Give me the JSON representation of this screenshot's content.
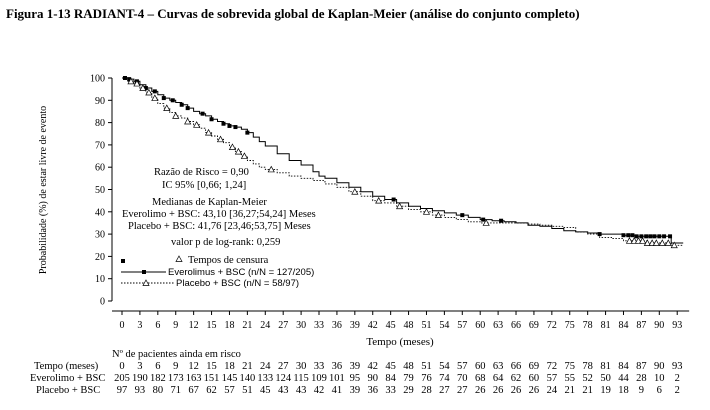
{
  "figure_title": "Figura 1-13 RADIANT-4 – Curvas de sobrevida global de Kaplan-Meier (análise do conjunto completo)",
  "annotations": {
    "hazard_ratio": "Razão de Risco = 0,90",
    "ci": "IC 95% [0,66; 1,24]",
    "medians_title": "Medianas de Kaplan-Meier",
    "median_everolimus": "Everolimo + BSC: 43,10 [36,27;54,24] Meses",
    "median_placebo": "Placebo + BSC: 41,76 [23,46;53,75] Meses",
    "logrank": "valor p de log-rank: 0,259"
  },
  "legend": {
    "title": "Tempos de censura",
    "entries": [
      {
        "label": "Everolimus + BSC (n/N = 127/205)"
      },
      {
        "label": "Placebo + BSC (n/N = 58/97)"
      }
    ]
  },
  "risk_table": {
    "heading": "Nº de pacientes ainda em risco",
    "time_label": "Tempo (meses)",
    "times": [
      "0",
      "3",
      "6",
      "9",
      "12",
      "15",
      "18",
      "21",
      "24",
      "27",
      "30",
      "33",
      "36",
      "39",
      "42",
      "45",
      "48",
      "51",
      "54",
      "57",
      "60",
      "63",
      "66",
      "69",
      "72",
      "75",
      "78",
      "81",
      "84",
      "87",
      "90",
      "93"
    ],
    "rows": [
      {
        "label": "Everolimo + BSC",
        "values": [
          "205",
          "190",
          "182",
          "173",
          "163",
          "151",
          "145",
          "140",
          "133",
          "124",
          "115",
          "109",
          "101",
          "95",
          "90",
          "84",
          "79",
          "76",
          "74",
          "70",
          "68",
          "64",
          "62",
          "60",
          "57",
          "55",
          "52",
          "50",
          "44",
          "28",
          "10",
          "2"
        ]
      },
      {
        "label": "Placebo + BSC",
        "values": [
          "97",
          "93",
          "80",
          "71",
          "67",
          "62",
          "57",
          "51",
          "45",
          "43",
          "43",
          "42",
          "41",
          "39",
          "36",
          "33",
          "29",
          "28",
          "27",
          "27",
          "26",
          "26",
          "26",
          "26",
          "24",
          "21",
          "21",
          "19",
          "18",
          "9",
          "6",
          "2"
        ]
      }
    ]
  },
  "chart_data": {
    "type": "line",
    "title": "Figura 1-13 RADIANT-4 – Curvas de sobrevida global de Kaplan-Meier (análise do conjunto completo)",
    "xlabel": "Tempo (meses)",
    "ylabel": "Probabilidade (%) de estar livre de evento",
    "xlim": [
      0,
      95
    ],
    "ylim": [
      0,
      100
    ],
    "xticks": [
      0,
      3,
      6,
      9,
      12,
      15,
      18,
      21,
      24,
      27,
      30,
      33,
      36,
      39,
      42,
      45,
      48,
      51,
      54,
      57,
      60,
      63,
      66,
      69,
      72,
      75,
      78,
      81,
      84,
      87,
      90,
      93
    ],
    "yticks": [
      0,
      10,
      20,
      30,
      40,
      50,
      60,
      70,
      80,
      90,
      100
    ],
    "grid": false,
    "series": [
      {
        "name": "Everolimus + BSC (n/N = 127/205)",
        "style": "solid",
        "marker": "square",
        "x": [
          0,
          1,
          2,
          3,
          4,
          5,
          6,
          7,
          8,
          9,
          10,
          11,
          12,
          13,
          14,
          15,
          16,
          17,
          18,
          19,
          20,
          21,
          22,
          23,
          24,
          26,
          28,
          30,
          32,
          33,
          34,
          36,
          38,
          40,
          42,
          44,
          46,
          48,
          50,
          52,
          54,
          56,
          58,
          60,
          62,
          64,
          66,
          68,
          70,
          72,
          74,
          76,
          78,
          80,
          82,
          84,
          86,
          88,
          90,
          92,
          94
        ],
        "y": [
          100,
          99.5,
          98.5,
          97,
          95.5,
          94,
          92.5,
          91,
          90,
          89,
          88,
          86.5,
          85,
          84,
          83,
          81.5,
          80.5,
          79.5,
          78.5,
          78,
          77,
          75.5,
          73.5,
          71.5,
          69.5,
          66,
          63,
          61,
          58,
          56,
          55,
          53,
          51,
          49,
          47,
          45.5,
          44,
          42.5,
          41.5,
          40.5,
          39.5,
          38.5,
          37.5,
          36.5,
          36,
          35.5,
          35,
          34,
          33.5,
          32.5,
          31.5,
          31,
          30.5,
          30,
          30,
          29.5,
          29,
          29,
          29,
          26,
          26
        ],
        "censor_x": [
          0.5,
          1.2,
          2.5,
          4,
          5.5,
          7,
          8.5,
          10,
          11,
          13.5,
          15,
          17,
          18,
          19,
          21,
          45.5,
          57,
          60.5,
          63.5,
          80,
          84,
          84.8,
          85.5,
          86.2,
          87,
          87.8,
          88.5,
          89.2,
          90,
          90.8,
          91.8
        ]
      },
      {
        "name": "Placebo + BSC (n/N = 58/97)",
        "style": "dotted",
        "marker": "triangle",
        "x": [
          0,
          1,
          2,
          3,
          4,
          5,
          6,
          7,
          8,
          9,
          10,
          11,
          12,
          13,
          14,
          15,
          16,
          17,
          18,
          19,
          20,
          21,
          22,
          23,
          24,
          26,
          28,
          30,
          32,
          34,
          36,
          38,
          40,
          42,
          44,
          46,
          48,
          50,
          52,
          54,
          56,
          58,
          60,
          62,
          64,
          66,
          68,
          70,
          72,
          74,
          76,
          78,
          80,
          82,
          84,
          86,
          88,
          90,
          92,
          94
        ],
        "y": [
          100,
          98.5,
          97.5,
          95.5,
          93.5,
          91,
          88.5,
          86.5,
          84.5,
          83,
          82,
          80.5,
          79,
          77.5,
          75.5,
          74,
          72.5,
          71,
          69,
          67,
          65,
          63,
          61.5,
          60,
          59,
          57.5,
          56,
          55,
          54,
          52.5,
          51,
          49,
          47,
          45,
          44,
          42.5,
          41,
          40,
          38.5,
          37.5,
          36.5,
          35.5,
          35,
          35,
          35,
          35,
          34.5,
          34,
          33.5,
          33,
          31,
          30,
          28.5,
          28,
          27,
          27,
          26,
          26,
          25,
          25
        ],
        "censor_x": [
          1.5,
          2.5,
          3.5,
          4.5,
          5.5,
          7.5,
          9,
          11,
          12.5,
          14.5,
          16.5,
          18.5,
          19.5,
          20.5,
          25,
          39,
          43,
          46.5,
          51,
          53,
          61,
          85,
          85.8,
          86.5,
          87.2,
          88,
          88.8,
          89.5,
          90.5,
          91.5,
          92.5
        ]
      }
    ],
    "legend_position": "lower-left"
  }
}
